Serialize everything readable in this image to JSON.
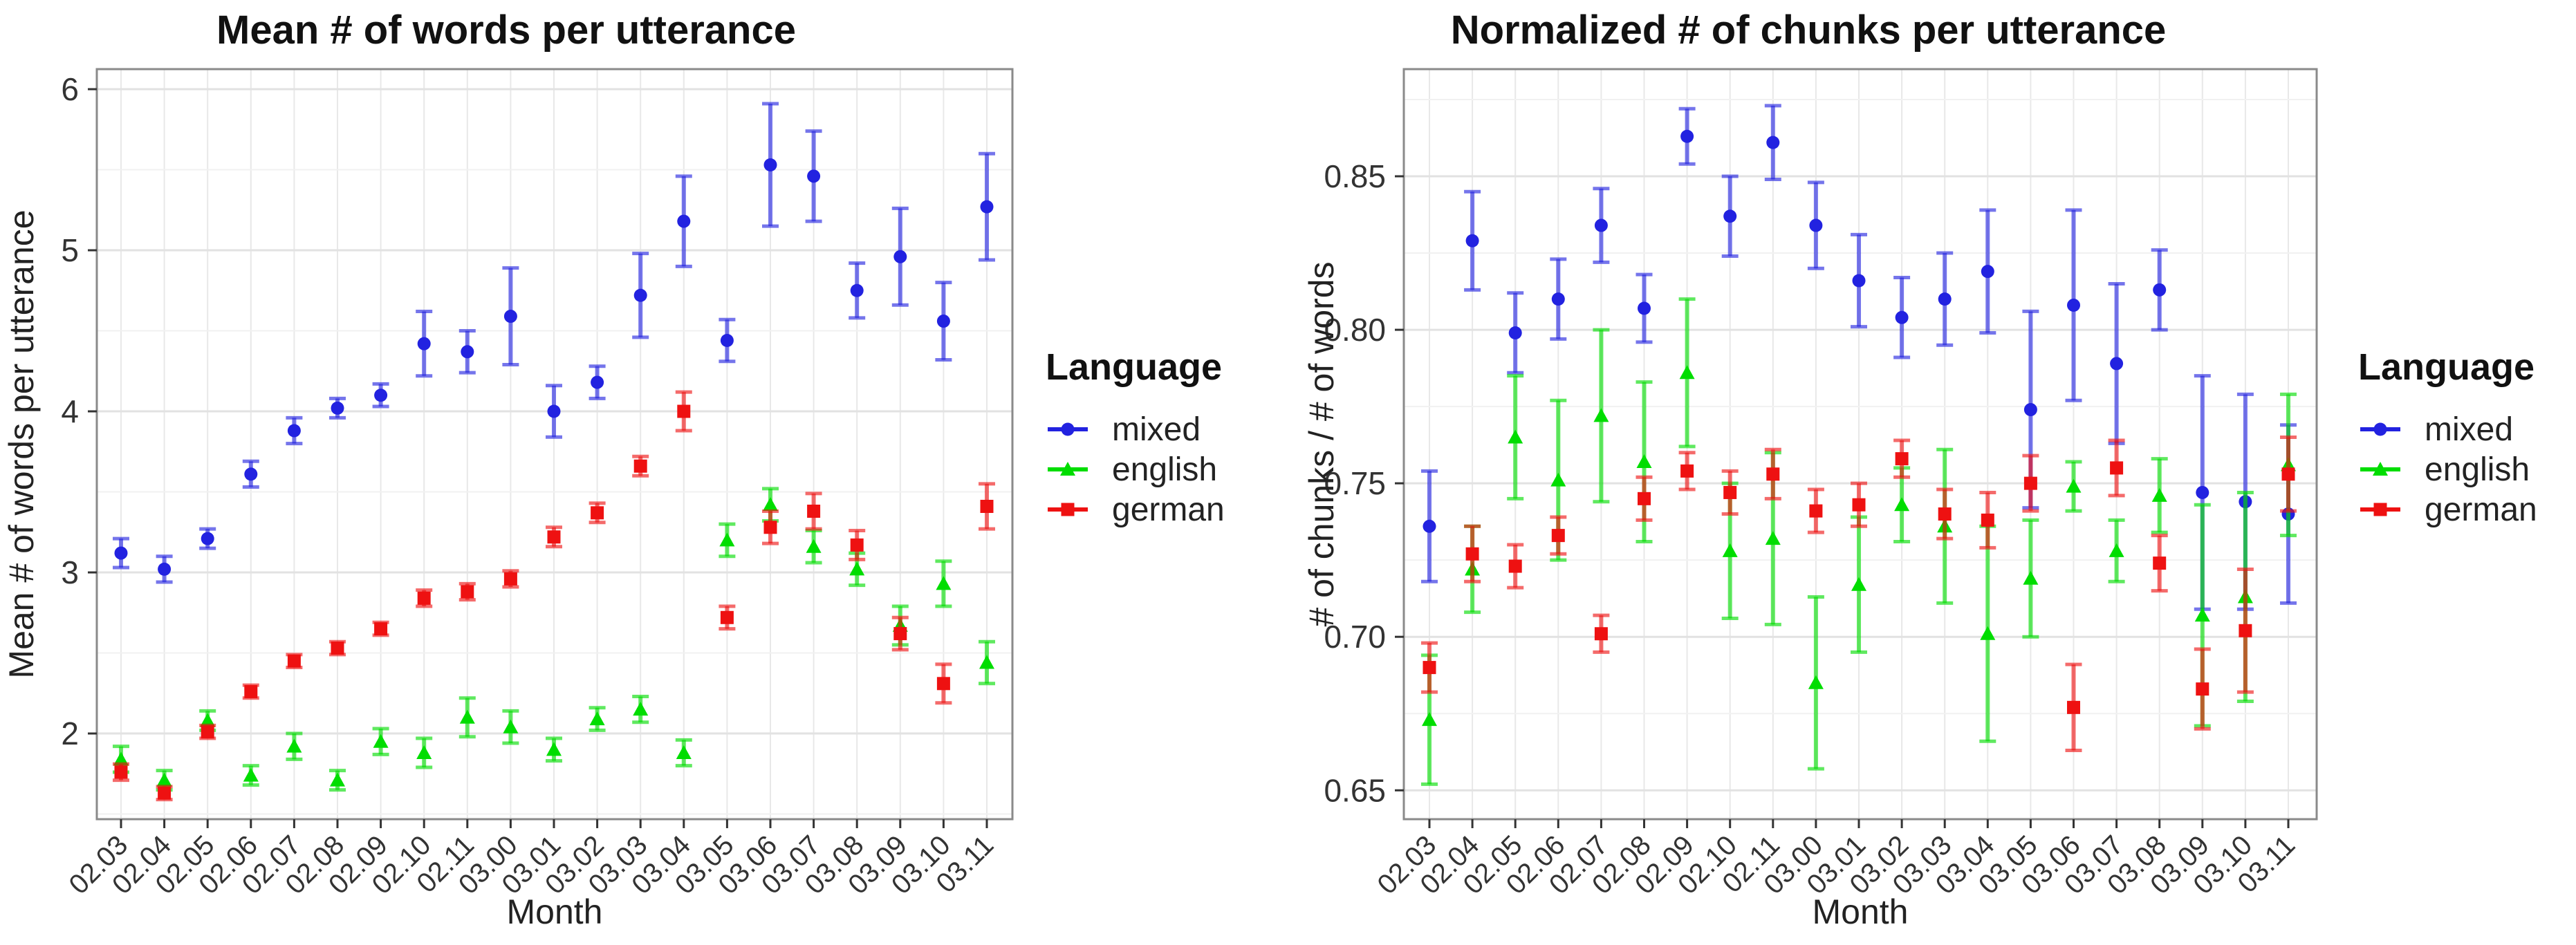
{
  "page": {
    "background": "#ffffff"
  },
  "legend": {
    "title": "Language",
    "entries": [
      {
        "label": "mixed",
        "color": "#2222e0",
        "marker": "circle"
      },
      {
        "label": "english",
        "color": "#00dd00",
        "marker": "triangle"
      },
      {
        "label": "german",
        "color": "#ee1111",
        "marker": "square"
      }
    ]
  },
  "chart_data": [
    {
      "type": "scatter",
      "title": "Mean # of words per utterance",
      "xlabel": "Month",
      "ylabel": "Mean # of words per utterance",
      "legend_title": "Language",
      "legend_position": "right",
      "grid": true,
      "ylim": [
        1.468,
        6.1245
      ],
      "yticks": [
        6,
        5,
        4,
        3,
        2
      ],
      "ytick_labels": [
        "6",
        "5",
        "4",
        "3",
        "2"
      ],
      "categories": [
        "02.03",
        "02.04",
        "02.05",
        "02.06",
        "02.07",
        "02.08",
        "02.09",
        "02.10",
        "02.11",
        "03.00",
        "03.01",
        "03.02",
        "03.03",
        "03.04",
        "03.05",
        "03.06",
        "03.07",
        "03.08",
        "03.09",
        "03.10",
        "03.11"
      ],
      "series": [
        {
          "name": "mixed",
          "color": "#2222e0",
          "marker": "circle",
          "values": [
            3.12,
            3.02,
            3.21,
            3.61,
            3.88,
            4.02,
            4.1,
            4.42,
            4.37,
            4.59,
            4.0,
            4.18,
            4.72,
            5.18,
            4.44,
            5.53,
            5.46,
            4.75,
            4.96,
            4.56,
            5.27
          ],
          "errors": [
            0.09,
            0.08,
            0.06,
            0.08,
            0.08,
            0.06,
            0.07,
            0.2,
            0.13,
            0.3,
            0.16,
            0.1,
            0.26,
            0.28,
            0.13,
            0.38,
            0.28,
            0.17,
            0.3,
            0.24,
            0.33
          ]
        },
        {
          "name": "english",
          "color": "#00dd00",
          "marker": "triangle",
          "values": [
            1.84,
            1.71,
            2.08,
            1.74,
            1.92,
            1.71,
            1.95,
            1.88,
            2.1,
            2.04,
            1.9,
            2.09,
            2.15,
            1.88,
            3.2,
            3.42,
            3.16,
            3.02,
            2.67,
            2.93,
            2.44
          ],
          "errors": [
            0.08,
            0.06,
            0.06,
            0.06,
            0.08,
            0.06,
            0.08,
            0.09,
            0.12,
            0.1,
            0.07,
            0.07,
            0.08,
            0.08,
            0.1,
            0.1,
            0.1,
            0.1,
            0.12,
            0.14,
            0.13
          ]
        },
        {
          "name": "german",
          "color": "#ee1111",
          "marker": "square",
          "values": [
            1.76,
            1.63,
            2.01,
            2.26,
            2.45,
            2.53,
            2.65,
            2.84,
            2.88,
            2.96,
            3.22,
            3.37,
            3.66,
            4.0,
            2.72,
            3.28,
            3.38,
            3.17,
            2.62,
            2.31,
            3.41
          ],
          "errors": [
            0.05,
            0.04,
            0.04,
            0.04,
            0.04,
            0.04,
            0.04,
            0.05,
            0.05,
            0.05,
            0.06,
            0.06,
            0.06,
            0.12,
            0.07,
            0.1,
            0.11,
            0.09,
            0.1,
            0.12,
            0.14
          ]
        }
      ]
    },
    {
      "type": "scatter",
      "title": "Normalized # of chunks per utterance",
      "xlabel": "Month",
      "ylabel": "# of chunks / # of words",
      "legend_title": "Language",
      "legend_position": "right",
      "grid": true,
      "ylim": [
        0.6406,
        0.8849
      ],
      "yticks": [
        0.85,
        0.8,
        0.75,
        0.7,
        0.65
      ],
      "ytick_labels": [
        "0.85",
        "0.80",
        "0.75",
        "0.70",
        "0.65"
      ],
      "categories": [
        "02.03",
        "02.04",
        "02.05",
        "02.06",
        "02.07",
        "02.08",
        "02.09",
        "02.10",
        "02.11",
        "03.00",
        "03.01",
        "03.02",
        "03.03",
        "03.04",
        "03.05",
        "03.06",
        "03.07",
        "03.08",
        "03.09",
        "03.10",
        "03.11"
      ],
      "series": [
        {
          "name": "mixed",
          "color": "#2222e0",
          "marker": "circle",
          "values": [
            0.736,
            0.829,
            0.799,
            0.81,
            0.834,
            0.807,
            0.863,
            0.837,
            0.861,
            0.834,
            0.816,
            0.804,
            0.81,
            0.819,
            0.774,
            0.808,
            0.789,
            0.813,
            0.747,
            0.744,
            0.74
          ],
          "errors": [
            0.018,
            0.016,
            0.013,
            0.013,
            0.012,
            0.011,
            0.009,
            0.013,
            0.012,
            0.014,
            0.015,
            0.013,
            0.015,
            0.02,
            0.032,
            0.031,
            0.026,
            0.013,
            0.038,
            0.035,
            0.029
          ]
        },
        {
          "name": "english",
          "color": "#00dd00",
          "marker": "triangle",
          "values": [
            0.673,
            0.722,
            0.765,
            0.751,
            0.772,
            0.757,
            0.786,
            0.728,
            0.732,
            0.685,
            0.717,
            0.743,
            0.736,
            0.701,
            0.719,
            0.749,
            0.728,
            0.746,
            0.707,
            0.713,
            0.756
          ],
          "errors": [
            0.021,
            0.014,
            0.02,
            0.026,
            0.028,
            0.026,
            0.024,
            0.022,
            0.028,
            0.028,
            0.022,
            0.012,
            0.025,
            0.035,
            0.019,
            0.008,
            0.01,
            0.012,
            0.036,
            0.034,
            0.023
          ]
        },
        {
          "name": "german",
          "color": "#ee1111",
          "marker": "square",
          "values": [
            0.69,
            0.727,
            0.723,
            0.733,
            0.701,
            0.745,
            0.754,
            0.747,
            0.753,
            0.741,
            0.743,
            0.758,
            0.74,
            0.738,
            0.75,
            0.677,
            0.755,
            0.724,
            0.683,
            0.702,
            0.753
          ],
          "errors": [
            0.008,
            0.009,
            0.007,
            0.006,
            0.006,
            0.007,
            0.006,
            0.007,
            0.008,
            0.007,
            0.007,
            0.006,
            0.008,
            0.009,
            0.009,
            0.014,
            0.009,
            0.009,
            0.013,
            0.02,
            0.012
          ]
        }
      ]
    }
  ]
}
